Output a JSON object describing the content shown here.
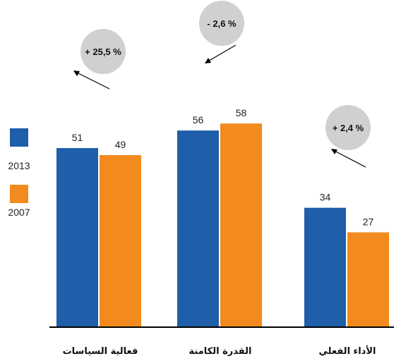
{
  "chart_data": {
    "type": "bar",
    "categories": [
      "فعالية السياسات",
      "القدرة الكامنة",
      "الأداء الفعلي"
    ],
    "series": [
      {
        "name": "2013",
        "values": [
          51,
          56,
          34
        ],
        "color": "#1f5ea8"
      },
      {
        "name": "2007",
        "values": [
          49,
          58,
          27
        ],
        "color": "#f28a1e"
      }
    ],
    "value_labels": [
      [
        "51",
        "56",
        "34"
      ],
      [
        "49",
        "58",
        "27"
      ]
    ],
    "annotations": [
      "+ 25,5 %",
      "- 2,6 %",
      "+ 2,4 %"
    ],
    "ylim": [
      0,
      70
    ],
    "grid": false,
    "legend": "left",
    "annotation_color": "#d0d0d0"
  }
}
